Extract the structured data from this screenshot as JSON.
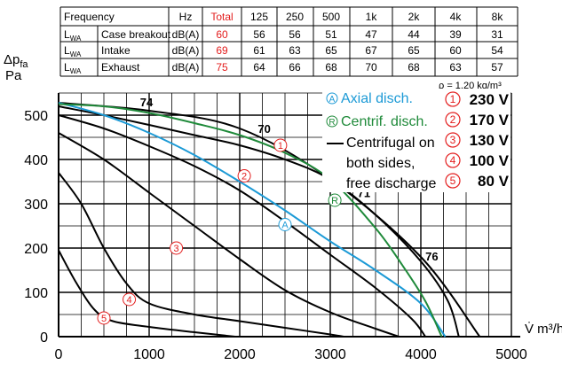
{
  "table": {
    "header": [
      "Frequency",
      "",
      "Hz",
      "Total",
      "125",
      "250",
      "500",
      "1k",
      "2k",
      "4k",
      "8k"
    ],
    "rows": [
      {
        "sym": "L",
        "sub": "WA",
        "name": "Case breakout",
        "unit": "dB(A)",
        "total": "60",
        "values": [
          "56",
          "56",
          "51",
          "47",
          "44",
          "39",
          "31"
        ]
      },
      {
        "sym": "L",
        "sub": "WA",
        "name": "Intake",
        "unit": "dB(A)",
        "total": "69",
        "values": [
          "61",
          "63",
          "65",
          "67",
          "65",
          "60",
          "54"
        ]
      },
      {
        "sym": "L",
        "sub": "WA",
        "name": "Exhaust",
        "unit": "dB(A)",
        "total": "75",
        "values": [
          "64",
          "66",
          "68",
          "70",
          "68",
          "63",
          "57"
        ]
      }
    ]
  },
  "chart_data": {
    "type": "line",
    "ylabel_main": "Δp",
    "ylabel_sub": "fa",
    "ylabel_unit": "Pa",
    "xlabel": "V̇ m³/h",
    "density": "ρ = 1,20 kg/m³",
    "xlim": [
      0,
      5000
    ],
    "ylim": [
      0,
      550
    ],
    "xticks": [
      0,
      1000,
      2000,
      3000,
      4000,
      5000
    ],
    "yticks": [
      0,
      100,
      200,
      300,
      400,
      500
    ],
    "series": [
      {
        "marker": "1",
        "kind": "centrifugal",
        "points": [
          [
            0,
            520
          ],
          [
            500,
            500
          ],
          [
            1000,
            478
          ],
          [
            1500,
            455
          ],
          [
            2000,
            432
          ],
          [
            2500,
            400
          ],
          [
            3000,
            355
          ],
          [
            3500,
            275
          ],
          [
            4000,
            170
          ],
          [
            4300,
            80
          ],
          [
            4420,
            0
          ]
        ]
      },
      {
        "marker": "2",
        "kind": "centrifugal",
        "points": [
          [
            0,
            500
          ],
          [
            500,
            470
          ],
          [
            1000,
            430
          ],
          [
            1500,
            385
          ],
          [
            2000,
            330
          ],
          [
            2500,
            260
          ],
          [
            3000,
            185
          ],
          [
            3500,
            110
          ],
          [
            3900,
            40
          ],
          [
            4050,
            0
          ]
        ]
      },
      {
        "marker": "3",
        "kind": "centrifugal",
        "points": [
          [
            0,
            460
          ],
          [
            500,
            400
          ],
          [
            1000,
            325
          ],
          [
            1500,
            250
          ],
          [
            2000,
            175
          ],
          [
            2500,
            105
          ],
          [
            3000,
            55
          ],
          [
            3500,
            18
          ],
          [
            3760,
            0
          ]
        ]
      },
      {
        "marker": "4",
        "kind": "centrifugal",
        "points": [
          [
            0,
            370
          ],
          [
            250,
            300
          ],
          [
            500,
            200
          ],
          [
            750,
            120
          ],
          [
            1000,
            75
          ],
          [
            1500,
            50
          ],
          [
            2000,
            35
          ],
          [
            2500,
            20
          ],
          [
            3000,
            5
          ],
          [
            3150,
            0
          ]
        ]
      },
      {
        "marker": "5",
        "kind": "centrifugal",
        "points": [
          [
            0,
            195
          ],
          [
            200,
            120
          ],
          [
            400,
            60
          ],
          [
            600,
            35
          ],
          [
            1000,
            22
          ],
          [
            1500,
            10
          ],
          [
            1950,
            0
          ]
        ]
      },
      {
        "marker": "A",
        "kind": "axial",
        "points": [
          [
            0,
            528
          ],
          [
            500,
            500
          ],
          [
            1000,
            460
          ],
          [
            1500,
            410
          ],
          [
            2000,
            350
          ],
          [
            2500,
            285
          ],
          [
            3000,
            215
          ],
          [
            3500,
            150
          ],
          [
            4000,
            75
          ],
          [
            4270,
            0
          ]
        ]
      },
      {
        "marker": "R",
        "kind": "centrif",
        "points": [
          [
            0,
            525
          ],
          [
            500,
            520
          ],
          [
            1000,
            505
          ],
          [
            1500,
            482
          ],
          [
            2000,
            455
          ],
          [
            2500,
            415
          ],
          [
            3000,
            355
          ],
          [
            3500,
            245
          ],
          [
            3800,
            160
          ],
          [
            4050,
            80
          ],
          [
            4230,
            0
          ]
        ]
      }
    ],
    "outline": [
      [
        0,
        528
      ],
      [
        1000,
        510
      ],
      [
        2000,
        470
      ],
      [
        3000,
        355
      ],
      [
        4000,
        180
      ],
      [
        4650,
        0
      ]
    ],
    "curve_labels": [
      {
        "text": "74",
        "x": 900,
        "y": 520
      },
      {
        "text": "70",
        "x": 2200,
        "y": 460
      },
      {
        "text": "71",
        "x": 3300,
        "y": 315
      },
      {
        "text": "76",
        "x": 4050,
        "y": 172
      }
    ],
    "markers": [
      {
        "id": "1",
        "x": 2450,
        "y": 432
      },
      {
        "id": "2",
        "x": 2050,
        "y": 363
      },
      {
        "id": "3",
        "x": 1300,
        "y": 200
      },
      {
        "id": "4",
        "x": 780,
        "y": 84
      },
      {
        "id": "5",
        "x": 500,
        "y": 42
      },
      {
        "id": "A",
        "x": 2500,
        "y": 253
      },
      {
        "id": "R",
        "x": 3050,
        "y": 308
      }
    ]
  },
  "legend": {
    "axial": {
      "symbol": "A",
      "text": "Axial disch."
    },
    "centrif": {
      "symbol": "R",
      "text": "Centrif. disch."
    },
    "both_lines": [
      "Centrifugal on",
      "both sides,",
      "free discharge"
    ],
    "speeds": [
      {
        "n": "1",
        "label": "230 V"
      },
      {
        "n": "2",
        "label": "170 V"
      },
      {
        "n": "3",
        "label": "130 V"
      },
      {
        "n": "4",
        "label": "100 V"
      },
      {
        "n": "5",
        "label": "80 V"
      }
    ]
  },
  "colors": {
    "axial": "#1c9ad6",
    "centrif": "#1f8a3a",
    "centrifugal": "#000000",
    "marker": "#e31d1d",
    "grid": "#000000"
  }
}
